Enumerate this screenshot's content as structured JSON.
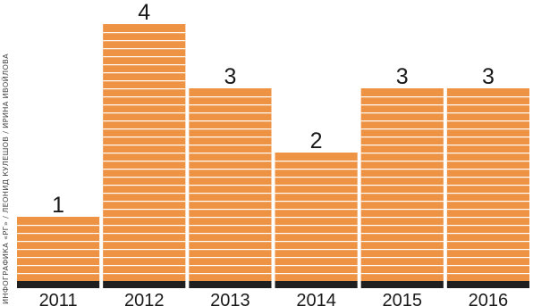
{
  "credit": "ИНФОГРАФИКА «РГ» / ЛЕОНИД КУЛЕШОВ / ИРИНА ИВОЙЛОВА",
  "colors": {
    "bar": "#ee9344",
    "stripe": "#ffffff",
    "baseline": "#1f1f1f",
    "text": "#1a1a1a"
  },
  "chart_data": {
    "type": "bar",
    "categories": [
      "2011",
      "2012",
      "2013",
      "2014",
      "2015",
      "2016"
    ],
    "values": [
      1,
      4,
      3,
      2,
      3,
      3
    ],
    "data_labels": [
      "1",
      "4",
      "3",
      "2",
      "3",
      "3"
    ],
    "title": "",
    "xlabel": "",
    "ylabel": "",
    "ylim": [
      0,
      4
    ],
    "grid": false,
    "legend": "none"
  }
}
